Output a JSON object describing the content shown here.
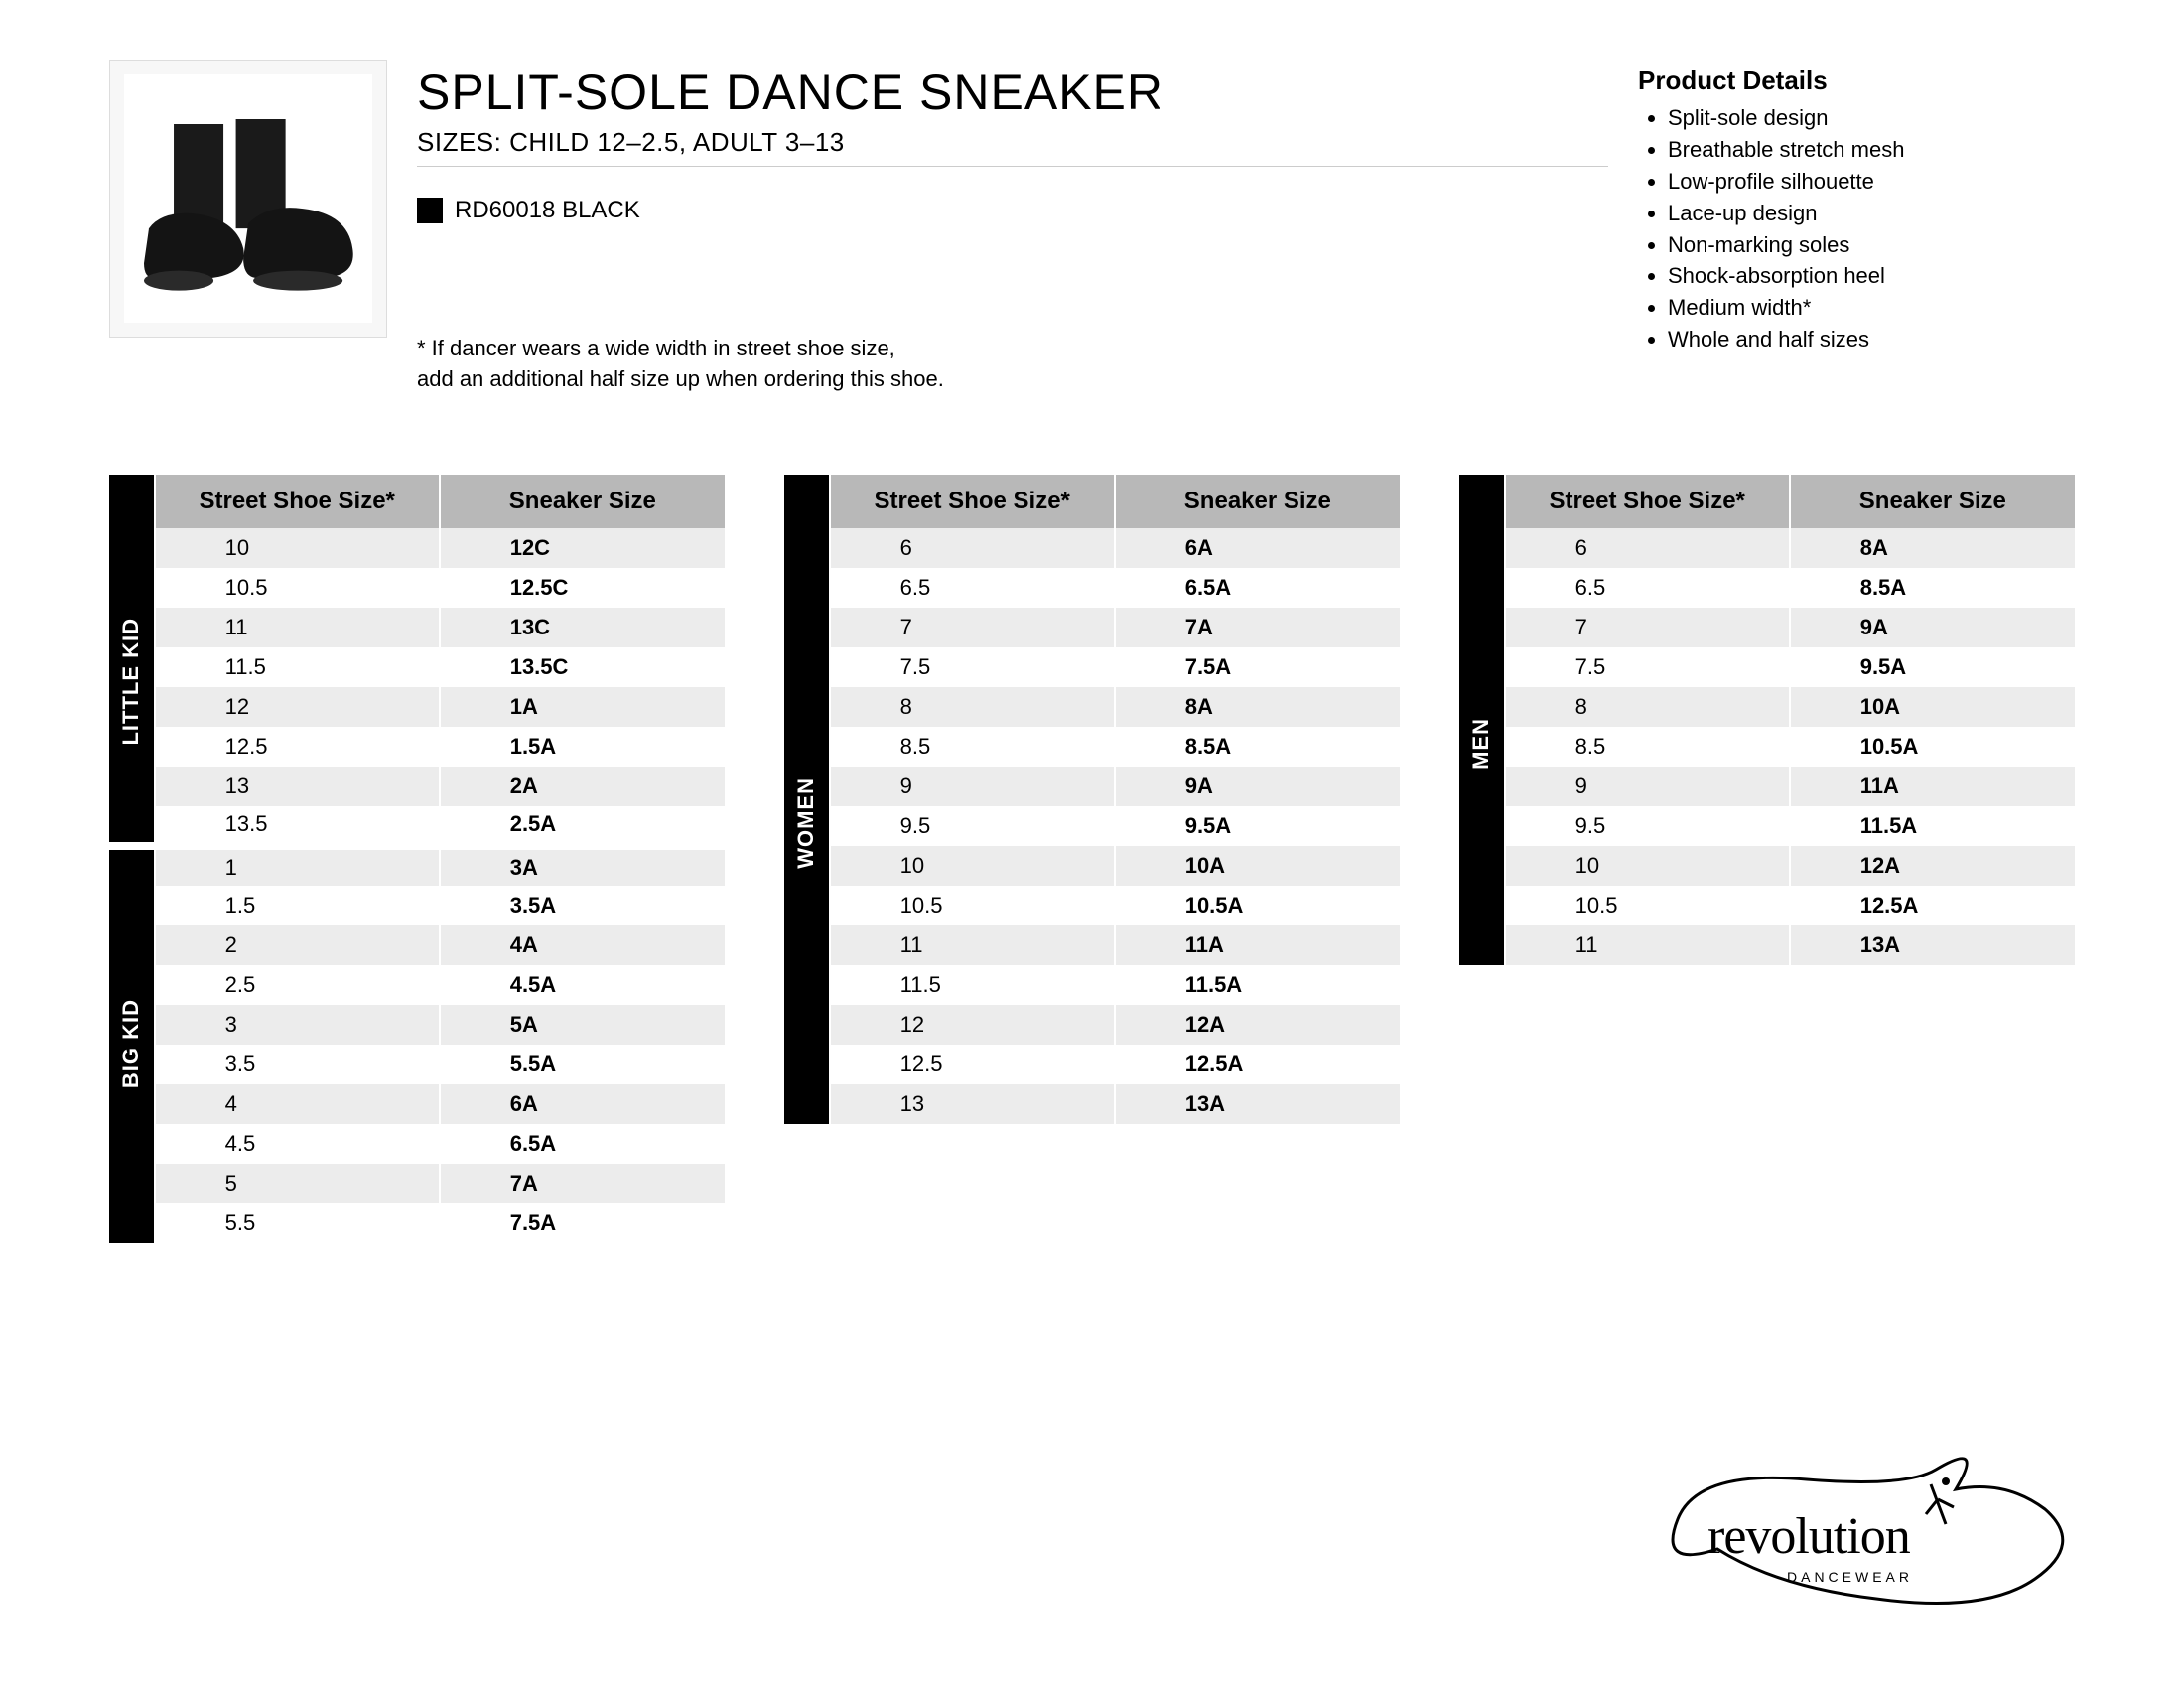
{
  "title": "SPLIT-SOLE DANCE SNEAKER",
  "sizes_line": "SIZES: CHILD 12–2.5, ADULT 3–13",
  "sku": "RD60018 BLACK",
  "swatch_color": "#000000",
  "footnote_l1": "* If dancer wears a wide width in street shoe size,",
  "footnote_l2": "add an additional half size up when ordering this shoe.",
  "details_header": "Product Details",
  "details": [
    "Split-sole design",
    "Breathable stretch mesh",
    "Low-profile silhouette",
    "Lace-up design",
    "Non-marking soles",
    "Shock-absorption heel",
    "Medium width*",
    "Whole and half sizes"
  ],
  "col_street": "Street Shoe Size*",
  "col_sneaker": "Sneaker Size",
  "colors": {
    "header_bg": "#b8b8b8",
    "row_odd": "#ececec",
    "row_even": "#ffffff",
    "side_bg": "#000000",
    "side_fg": "#ffffff"
  },
  "col_widths": {
    "side": 46,
    "street": 290,
    "sneaker": 290
  },
  "tables": [
    {
      "groups": [
        {
          "label": "LITTLE KID",
          "rows": [
            [
              "10",
              "12C"
            ],
            [
              "10.5",
              "12.5C"
            ],
            [
              "11",
              "13C"
            ],
            [
              "11.5",
              "13.5C"
            ],
            [
              "12",
              "1A"
            ],
            [
              "12.5",
              "1.5A"
            ],
            [
              "13",
              "2A"
            ],
            [
              "13.5",
              "2.5A"
            ]
          ]
        },
        {
          "label": "BIG KID",
          "rows": [
            [
              "1",
              "3A"
            ],
            [
              "1.5",
              "3.5A"
            ],
            [
              "2",
              "4A"
            ],
            [
              "2.5",
              "4.5A"
            ],
            [
              "3",
              "5A"
            ],
            [
              "3.5",
              "5.5A"
            ],
            [
              "4",
              "6A"
            ],
            [
              "4.5",
              "6.5A"
            ],
            [
              "5",
              "7A"
            ],
            [
              "5.5",
              "7.5A"
            ]
          ]
        }
      ]
    },
    {
      "groups": [
        {
          "label": "WOMEN",
          "rows": [
            [
              "6",
              "6A"
            ],
            [
              "6.5",
              "6.5A"
            ],
            [
              "7",
              "7A"
            ],
            [
              "7.5",
              "7.5A"
            ],
            [
              "8",
              "8A"
            ],
            [
              "8.5",
              "8.5A"
            ],
            [
              "9",
              "9A"
            ],
            [
              "9.5",
              "9.5A"
            ],
            [
              "10",
              "10A"
            ],
            [
              "10.5",
              "10.5A"
            ],
            [
              "11",
              "11A"
            ],
            [
              "11.5",
              "11.5A"
            ],
            [
              "12",
              "12A"
            ],
            [
              "12.5",
              "12.5A"
            ],
            [
              "13",
              "13A"
            ]
          ]
        }
      ]
    },
    {
      "groups": [
        {
          "label": "MEN",
          "rows": [
            [
              "6",
              "8A"
            ],
            [
              "6.5",
              "8.5A"
            ],
            [
              "7",
              "9A"
            ],
            [
              "7.5",
              "9.5A"
            ],
            [
              "8",
              "10A"
            ],
            [
              "8.5",
              "10.5A"
            ],
            [
              "9",
              "11A"
            ],
            [
              "9.5",
              "11.5A"
            ],
            [
              "10",
              "12A"
            ],
            [
              "10.5",
              "12.5A"
            ],
            [
              "11",
              "13A"
            ]
          ]
        }
      ]
    }
  ],
  "logo": {
    "name": "revolution",
    "sub": "DANCEWEAR"
  }
}
